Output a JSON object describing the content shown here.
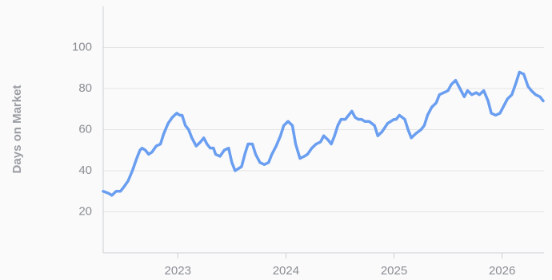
{
  "chart_data": {
    "type": "line",
    "ylabel": "Days on Market",
    "xlim": [
      2022.31,
      2026.38
    ],
    "xticks": [
      2023,
      2024,
      2025,
      2026
    ],
    "ylim": [
      0,
      120
    ],
    "yticks": [
      20,
      40,
      60,
      80,
      100
    ],
    "grid": true,
    "x": [
      2022.31,
      2022.36,
      2022.39,
      2022.43,
      2022.47,
      2022.5,
      2022.54,
      2022.58,
      2022.62,
      2022.65,
      2022.67,
      2022.7,
      2022.73,
      2022.76,
      2022.8,
      2022.84,
      2022.87,
      2022.91,
      2022.95,
      2022.99,
      2023.02,
      2023.04,
      2023.07,
      2023.1,
      2023.13,
      2023.17,
      2023.21,
      2023.24,
      2023.27,
      2023.3,
      2023.33,
      2023.35,
      2023.39,
      2023.43,
      2023.47,
      2023.5,
      2023.53,
      2023.56,
      2023.59,
      2023.62,
      2023.65,
      2023.69,
      2023.72,
      2023.76,
      2023.8,
      2023.84,
      2023.87,
      2023.91,
      2023.95,
      2023.98,
      2024.02,
      2024.06,
      2024.09,
      2024.13,
      2024.17,
      2024.2,
      2024.24,
      2024.28,
      2024.32,
      2024.35,
      2024.39,
      2024.42,
      2024.45,
      2024.48,
      2024.51,
      2024.55,
      2024.58,
      2024.61,
      2024.64,
      2024.67,
      2024.7,
      2024.73,
      2024.77,
      2024.82,
      2024.85,
      2024.89,
      2024.94,
      2024.97,
      2025.0,
      2025.02,
      2025.05,
      2025.1,
      2025.13,
      2025.16,
      2025.2,
      2025.25,
      2025.28,
      2025.31,
      2025.35,
      2025.39,
      2025.42,
      2025.46,
      2025.5,
      2025.53,
      2025.57,
      2025.61,
      2025.65,
      2025.68,
      2025.72,
      2025.76,
      2025.79,
      2025.83,
      2025.87,
      2025.9,
      2025.94,
      2025.98,
      2026.02,
      2026.05,
      2026.09,
      2026.13,
      2026.16,
      2026.2,
      2026.24,
      2026.27,
      2026.31,
      2026.35,
      2026.38
    ],
    "series": [
      {
        "name": "Days on Market",
        "color": "#6a9ef0",
        "values": [
          30,
          29,
          28,
          30,
          30,
          32,
          35,
          40,
          46,
          50,
          51,
          50,
          48,
          49,
          52,
          53,
          58,
          63,
          66,
          68,
          67,
          67,
          62,
          60,
          56,
          52,
          54,
          56,
          53,
          51,
          51,
          48,
          47,
          50,
          51,
          44,
          40,
          41,
          42,
          48,
          53,
          53,
          48,
          44,
          43,
          44,
          48,
          52,
          57,
          62,
          64,
          62,
          53,
          46,
          47,
          48,
          51,
          53,
          54,
          57,
          55,
          53,
          57,
          62,
          65,
          65,
          67,
          69,
          66,
          65,
          65,
          64,
          64,
          62,
          57,
          59,
          63,
          64,
          65,
          65,
          67,
          65,
          60,
          56,
          58,
          60,
          62,
          67,
          71,
          73,
          77,
          78,
          79,
          82,
          84,
          80,
          76,
          79,
          77,
          78,
          77,
          79,
          74,
          68,
          67,
          68,
          72,
          75,
          77,
          83,
          88,
          87,
          81,
          79,
          77,
          76,
          74
        ]
      }
    ]
  }
}
